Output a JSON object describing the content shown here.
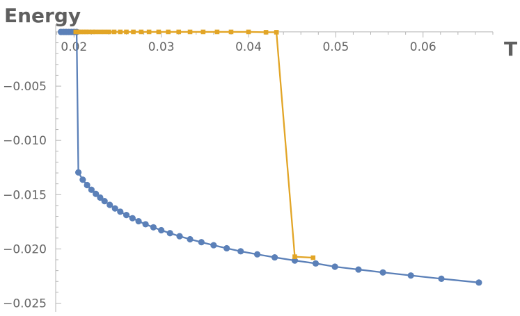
{
  "chart_data": {
    "type": "line",
    "title": "",
    "xlabel": "T",
    "ylabel": "Energy",
    "xlim": [
      0.0179,
      0.068
    ],
    "ylim": [
      -0.0258,
      0.0007
    ],
    "x_ticks": [
      0.02,
      0.03,
      0.04,
      0.05,
      0.06
    ],
    "x_tick_labels": [
      "0.02",
      "0.03",
      "0.04",
      "0.05",
      "0.06"
    ],
    "y_ticks": [
      -0.005,
      -0.01,
      -0.015,
      -0.02,
      -0.025
    ],
    "y_tick_labels": [
      "−0.005",
      "−0.010",
      "−0.015",
      "−0.020",
      "−0.025"
    ],
    "grid": false,
    "legend": "none",
    "series": [
      {
        "color": "#5b80b8",
        "marker": "circle",
        "points": [
          [
            0.0185,
            0
          ],
          [
            0.0188,
            0
          ],
          [
            0.0191,
            0
          ],
          [
            0.0194,
            0
          ],
          [
            0.0197,
            0
          ],
          [
            0.02,
            0
          ],
          [
            0.0203,
            0
          ],
          [
            0.0205,
            -0.01295
          ],
          [
            0.021,
            -0.01362
          ],
          [
            0.0215,
            -0.01412
          ],
          [
            0.022,
            -0.01455
          ],
          [
            0.0225,
            -0.01493
          ],
          [
            0.023,
            -0.01527
          ],
          [
            0.0235,
            -0.0156
          ],
          [
            0.0241,
            -0.01594
          ],
          [
            0.0247,
            -0.01627
          ],
          [
            0.0253,
            -0.01657
          ],
          [
            0.026,
            -0.01688
          ],
          [
            0.0267,
            -0.01717
          ],
          [
            0.0274,
            -0.01745
          ],
          [
            0.0282,
            -0.01773
          ],
          [
            0.0291,
            -0.01801
          ],
          [
            0.03,
            -0.01828
          ],
          [
            0.031,
            -0.01855
          ],
          [
            0.0321,
            -0.01883
          ],
          [
            0.0333,
            -0.01911
          ],
          [
            0.0346,
            -0.01938
          ],
          [
            0.036,
            -0.01966
          ],
          [
            0.0375,
            -0.01994
          ],
          [
            0.0391,
            -0.02022
          ],
          [
            0.041,
            -0.0205
          ],
          [
            0.043,
            -0.02078
          ],
          [
            0.0453,
            -0.02107
          ],
          [
            0.0477,
            -0.02134
          ],
          [
            0.0499,
            -0.02164
          ],
          [
            0.0526,
            -0.0219
          ],
          [
            0.0554,
            -0.02217
          ],
          [
            0.0586,
            -0.02245
          ],
          [
            0.0621,
            -0.02275
          ],
          [
            0.0664,
            -0.0231
          ]
        ]
      },
      {
        "color": "#e2a526",
        "marker": "square",
        "points": [
          [
            0.0202,
            0
          ],
          [
            0.0205,
            0
          ],
          [
            0.0208,
            0
          ],
          [
            0.0211,
            0
          ],
          [
            0.0214,
            0
          ],
          [
            0.0217,
            0
          ],
          [
            0.0221,
            0
          ],
          [
            0.0225,
            0
          ],
          [
            0.023,
            0
          ],
          [
            0.0235,
            0
          ],
          [
            0.024,
            0
          ],
          [
            0.0246,
            0
          ],
          [
            0.0253,
            0
          ],
          [
            0.026,
            0
          ],
          [
            0.0268,
            0
          ],
          [
            0.0277,
            0
          ],
          [
            0.0286,
            0
          ],
          [
            0.0297,
            0
          ],
          [
            0.0308,
            0
          ],
          [
            0.032,
            0
          ],
          [
            0.0333,
            0
          ],
          [
            0.0348,
            0
          ],
          [
            0.0364,
            0
          ],
          [
            0.038,
            0
          ],
          [
            0.04,
            0
          ],
          [
            0.042,
            -3e-05
          ],
          [
            0.0432,
            -3e-05
          ],
          [
            0.0453,
            -0.02072
          ],
          [
            0.0474,
            -0.02081
          ]
        ]
      }
    ]
  }
}
